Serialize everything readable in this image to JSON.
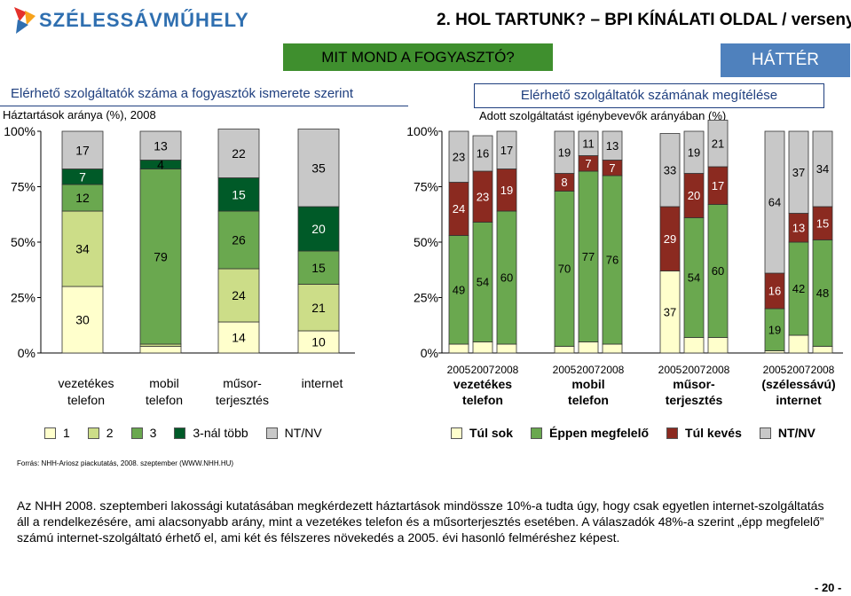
{
  "header": {
    "logo_text": "SZÉLESSÁVMŰHELY",
    "title": "2. HOL TARTUNK? – BPI KÍNÁLATI OLDAL / verseny",
    "consumer_tab": "MIT MOND A FOGYASZTÓ?",
    "background_tab": "HÁTTÉR"
  },
  "left_section": {
    "title": "Elérhető szolgáltatók száma a fogyasztók ismerete szerint",
    "subtitle": "Háztartások aránya (%), 2008"
  },
  "right_section": {
    "title": "Elérhető szolgáltatók számának megítélése",
    "subtitle": "Adott szolgáltatást igénybevevők arányában (%)"
  },
  "colors": {
    "one": "#ffffcc",
    "two": "#ccdd88",
    "three": "#6aa84f",
    "more": "#005a28",
    "ntnv": "#c8c8c8",
    "too_much": "#ffffcc",
    "just_right": "#6aa84f",
    "too_few": "#8b2a20",
    "ntnv_right": "#c8c8c8"
  },
  "chart_data": [
    {
      "type": "bar",
      "stacked": true,
      "title": "Elérhető szolgáltatók száma a fogyasztók ismerete szerint",
      "ylim": [
        0,
        100
      ],
      "ytick_labels": [
        "0%",
        "25%",
        "50%",
        "75%",
        "100%"
      ],
      "categories": [
        "vezetékes telefon",
        "mobil telefon",
        "műsor-terjesztés",
        "internet"
      ],
      "category_lines": [
        [
          "vezetékes",
          "telefon"
        ],
        [
          "mobil",
          "telefon"
        ],
        [
          "műsor-",
          "terjesztés"
        ],
        [
          "internet",
          ""
        ]
      ],
      "series": [
        {
          "name": "1",
          "values": [
            30,
            3,
            14,
            10
          ],
          "labels": [
            "30",
            "",
            "14",
            "10"
          ]
        },
        {
          "name": "2",
          "values": [
            34,
            1,
            24,
            21
          ],
          "labels": [
            "34",
            "",
            "24",
            "21"
          ]
        },
        {
          "name": "3",
          "values": [
            12,
            79,
            26,
            15
          ],
          "labels": [
            "12",
            "79",
            "26",
            "15"
          ]
        },
        {
          "name": "3-nál több",
          "values": [
            7,
            4,
            15,
            20
          ],
          "labels": [
            "7",
            "4",
            "15",
            "20"
          ]
        },
        {
          "name": "NT/NV",
          "values": [
            17,
            13,
            22,
            35
          ],
          "labels": [
            "17",
            "13",
            "22",
            "35"
          ]
        }
      ],
      "legend": [
        "1",
        "2",
        "3",
        "3-nál több",
        "NT/NV"
      ]
    },
    {
      "type": "bar",
      "stacked": true,
      "title": "Elérhető szolgáltatók számának megítélése",
      "ylim": [
        0,
        100
      ],
      "ytick_labels": [
        "0%",
        "25%",
        "50%",
        "75%",
        "100%"
      ],
      "groups": [
        {
          "name": "vezetékes telefon",
          "lines": [
            "vezetékes",
            "telefon"
          ],
          "years": [
            "2005",
            "2007",
            "2008"
          ],
          "too_much": [
            4,
            5,
            4
          ],
          "just_right": [
            49,
            54,
            60
          ],
          "too_few": [
            24,
            23,
            19
          ],
          "ntnv": [
            23,
            16,
            17
          ]
        },
        {
          "name": "mobil telefon",
          "lines": [
            "mobil",
            "telefon"
          ],
          "years": [
            "2005",
            "2007",
            "2008"
          ],
          "too_much": [
            3,
            5,
            4
          ],
          "just_right": [
            70,
            77,
            76
          ],
          "too_few": [
            8,
            7,
            7
          ],
          "ntnv": [
            19,
            11,
            13
          ]
        },
        {
          "name": "műsor-terjesztés",
          "lines": [
            "műsor-",
            "terjesztés"
          ],
          "years": [
            "2005",
            "2007",
            "2008"
          ],
          "too_much": [
            37,
            7,
            7
          ],
          "just_right": [
            0,
            54,
            60
          ],
          "too_few": [
            29,
            20,
            17
          ],
          "ntnv": [
            33,
            19,
            21
          ]
        },
        {
          "name": "(szélessávú) internet",
          "lines": [
            "(szélessávú)",
            "internet"
          ],
          "years": [
            "2005",
            "2007",
            "2008"
          ],
          "too_much": [
            1,
            8,
            3
          ],
          "just_right": [
            19,
            42,
            48
          ],
          "too_few": [
            16,
            13,
            15
          ],
          "ntnv": [
            64,
            37,
            34
          ]
        }
      ],
      "segment_labels": [
        [
          [
            "",
            "49",
            "24",
            "23"
          ],
          [
            "",
            "54",
            "23",
            "16"
          ],
          [
            "",
            "60",
            "19",
            "17"
          ]
        ],
        [
          [
            "",
            "70",
            "8",
            "19"
          ],
          [
            "",
            "77",
            "7",
            "11"
          ],
          [
            "",
            "76",
            "7",
            "13"
          ]
        ],
        [
          [
            "37",
            "",
            "29",
            "33"
          ],
          [
            "",
            "54",
            "20",
            "19"
          ],
          [
            "",
            "60",
            "17",
            "21"
          ]
        ],
        [
          [
            "",
            "19",
            "16",
            "64"
          ],
          [
            "",
            "42",
            "13",
            "37"
          ],
          [
            "",
            "48",
            "15",
            "34"
          ]
        ]
      ],
      "legend": [
        "Túl sok",
        "Éppen megfelelő",
        "Túl kevés",
        "NT/NV"
      ]
    }
  ],
  "footer": {
    "source": "Forrás: NHH-Ariosz piackutatás, 2008. szeptember (WWW.NHH.HU)",
    "body": "Az NHH 2008. szeptemberi lakossági kutatásában megkérdezett háztartások mindössze 10%-a tudta úgy, hogy csak egyetlen internet-szolgáltatás áll a rendelkezésére, ami alacsonyabb arány, mint a vezetékes telefon és a műsorterjesztés esetében. A válaszadók 48%-a szerint „épp megfelelő” számú internet-szolgáltató érhető el, ami két és félszeres növekedés a 2005. évi hasonló felméréshez képest.",
    "page": "- 20 -"
  }
}
